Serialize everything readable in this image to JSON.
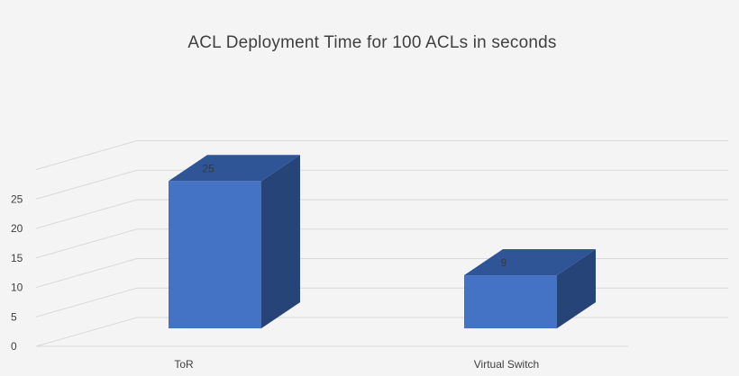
{
  "chart_data": {
    "type": "bar",
    "title": "ACL Deployment Time for 100 ACLs in seconds",
    "categories": [
      "ToR",
      "Virtual Switch"
    ],
    "values": [
      25,
      9
    ],
    "data_labels": [
      "25",
      "9"
    ],
    "yticks": [
      "0",
      "5",
      "10",
      "15",
      "20",
      "25"
    ],
    "ylim": [
      0,
      35
    ],
    "grid": true,
    "style": "3d-column",
    "bar_color": "#4472c4"
  }
}
